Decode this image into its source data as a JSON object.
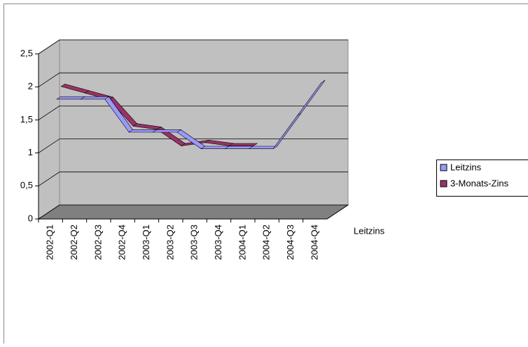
{
  "chart_data": {
    "type": "line3d",
    "categories": [
      "2002-Q1",
      "2002-Q2",
      "2002-Q3",
      "2002-Q4",
      "2003-Q1",
      "2003-Q2",
      "2003-Q3",
      "2003-Q4",
      "2004-Q1",
      "2004-Q2",
      "2004-Q3",
      "2004-Q4"
    ],
    "series": [
      {
        "name": "Leitzins",
        "color": "#9999ff",
        "values": [
          1.75,
          1.75,
          1.75,
          1.25,
          1.25,
          1.25,
          1.0,
          1.0,
          1.0,
          1.0,
          1.5,
          2.0
        ]
      },
      {
        "name": "3-Monats-Zins",
        "color": "#993366",
        "values": [
          1.9,
          1.8,
          1.7,
          1.3,
          1.25,
          1.0,
          1.05,
          1.0,
          1.0,
          null,
          null,
          null
        ]
      }
    ],
    "ylim": [
      0,
      2.5
    ],
    "yticks": [
      0,
      {
        "value": 0.5,
        "label": "0,5"
      },
      1,
      {
        "value": 1.5,
        "label": "1,5"
      },
      2,
      {
        "value": 2.5,
        "label": "2,5"
      }
    ],
    "grid": true
  }
}
